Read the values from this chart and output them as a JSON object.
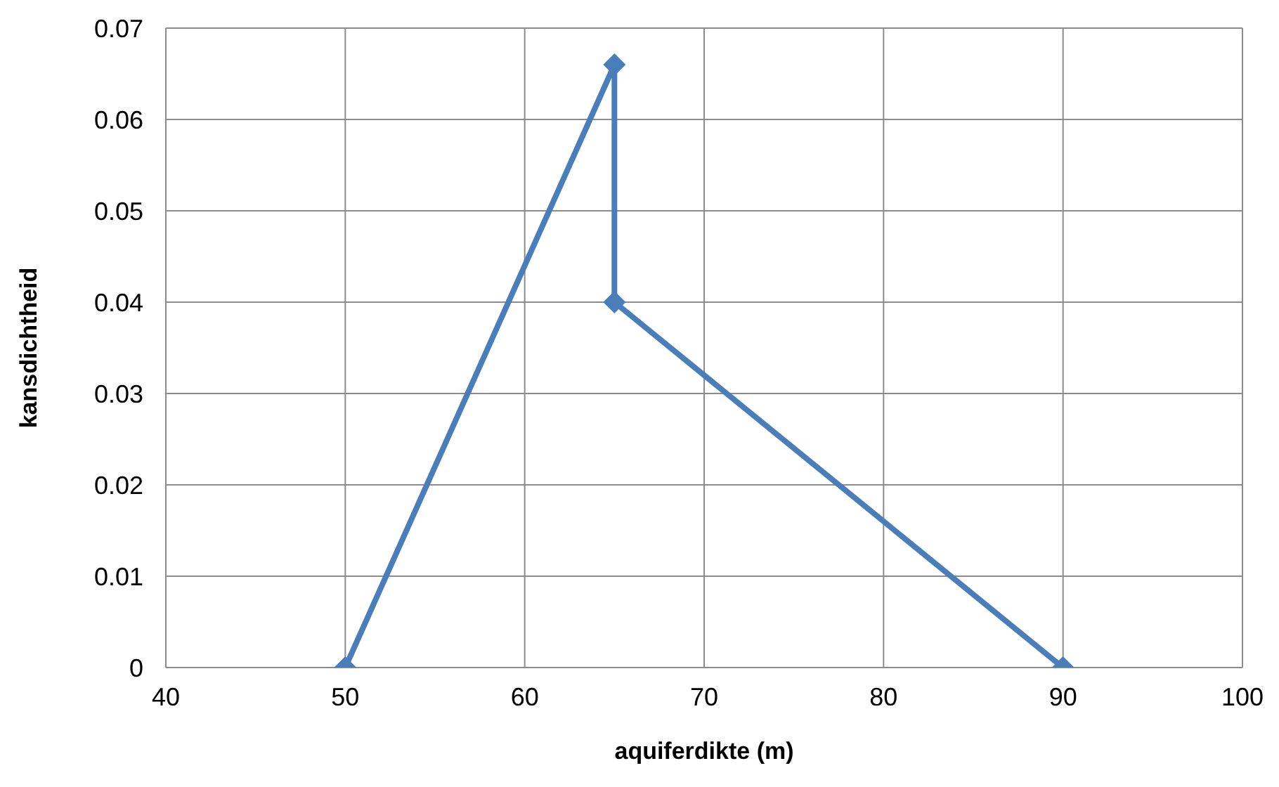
{
  "chart_data": {
    "type": "line",
    "xlabel": "aquiferdikte (m)",
    "ylabel": "kansdichtheid",
    "x": [
      50,
      65,
      65,
      90
    ],
    "series": [
      {
        "color": "#4a7ebb",
        "values": [
          0,
          0.066,
          0.04,
          0
        ]
      }
    ],
    "xlim": [
      40,
      100
    ],
    "xticks": [
      40,
      50,
      60,
      70,
      80,
      90,
      100
    ],
    "ylim": [
      0,
      0.07
    ],
    "yticks": [
      0,
      0.01,
      0.02,
      0.03,
      0.04,
      0.05,
      0.06,
      0.07
    ],
    "grid": true,
    "marker": "diamond",
    "line_style": "solid"
  }
}
